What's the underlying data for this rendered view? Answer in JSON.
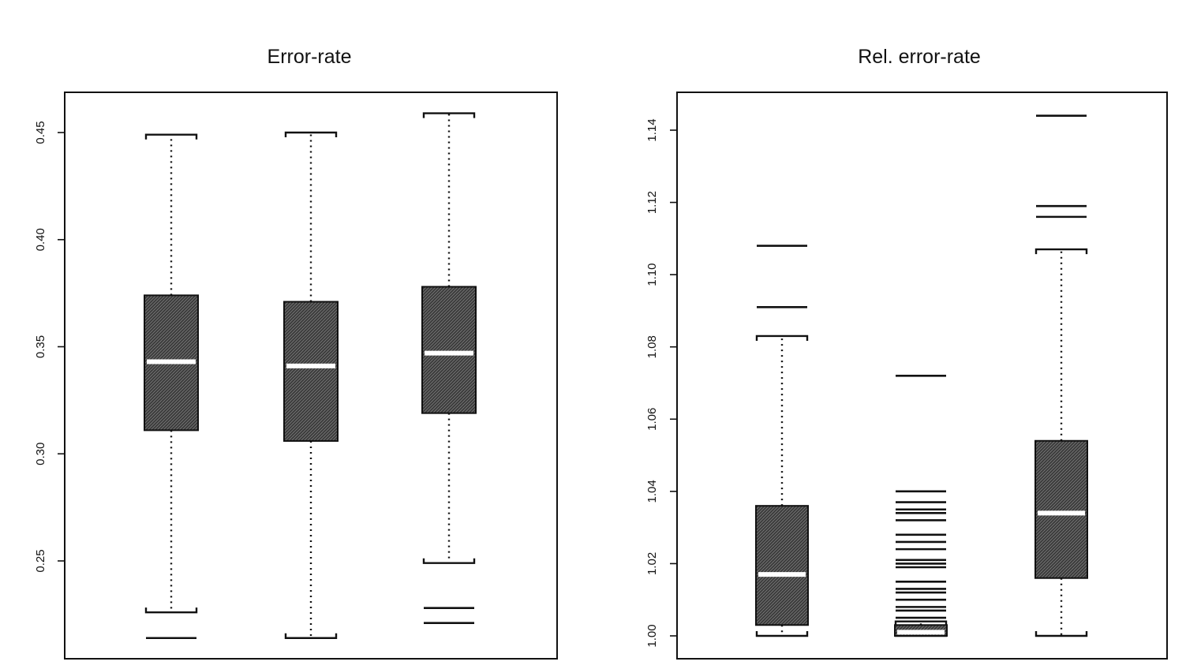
{
  "chart_data": [
    {
      "type": "box",
      "title": "Error-rate",
      "xlabel": "",
      "ylabel": "",
      "ylim": [
        0.21,
        0.47
      ],
      "yticks": [
        0.25,
        0.3,
        0.35,
        0.4,
        0.45
      ],
      "ytick_labels": [
        "0.25",
        "0.30",
        "0.35",
        "0.40",
        "0.45"
      ],
      "grid": false,
      "boxes": [
        {
          "min": 0.226,
          "q1": 0.311,
          "median": 0.343,
          "q3": 0.374,
          "max": 0.449,
          "outliers": [
            0.214
          ]
        },
        {
          "min": 0.214,
          "q1": 0.306,
          "median": 0.341,
          "q3": 0.371,
          "max": 0.45,
          "outliers": []
        },
        {
          "min": 0.249,
          "q1": 0.319,
          "median": 0.347,
          "q3": 0.378,
          "max": 0.459,
          "outliers": [
            0.228,
            0.221
          ]
        }
      ]
    },
    {
      "type": "box",
      "title": "Rel. error-rate",
      "xlabel": "",
      "ylabel": "",
      "ylim": [
        0.993,
        1.15
      ],
      "yticks": [
        1.0,
        1.02,
        1.04,
        1.06,
        1.08,
        1.1,
        1.12,
        1.14
      ],
      "ytick_labels": [
        "1.00",
        "1.02",
        "1.04",
        "1.06",
        "1.08",
        "1.10",
        "1.12",
        "1.14"
      ],
      "grid": false,
      "boxes": [
        {
          "min": 1.0,
          "q1": 1.003,
          "median": 1.017,
          "q3": 1.036,
          "max": 1.083,
          "outliers": [
            1.091,
            1.108
          ]
        },
        {
          "min": 1.0,
          "q1": 1.0,
          "median": 1.001,
          "q3": 1.003,
          "max": 1.004,
          "outliers": [
            1.005,
            1.007,
            1.008,
            1.01,
            1.012,
            1.013,
            1.015,
            1.019,
            1.02,
            1.021,
            1.024,
            1.026,
            1.028,
            1.032,
            1.034,
            1.035,
            1.037,
            1.04,
            1.072
          ]
        },
        {
          "min": 1.0,
          "q1": 1.016,
          "median": 1.034,
          "q3": 1.054,
          "max": 1.107,
          "outliers": [
            1.116,
            1.119,
            1.144
          ]
        }
      ]
    }
  ]
}
